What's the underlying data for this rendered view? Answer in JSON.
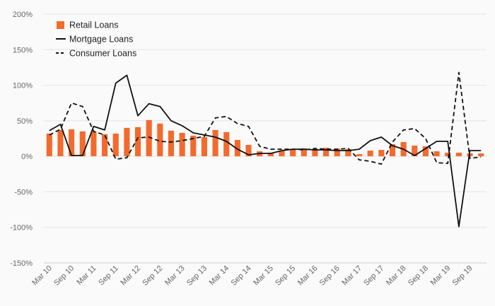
{
  "chart_data": {
    "type": "bar+line",
    "x": [
      "Mar 10",
      "Jun 10",
      "Sep 10",
      "Dec 10",
      "Mar 11",
      "Jun 11",
      "Sep 11",
      "Dec 11",
      "Mar 12",
      "Jun 12",
      "Sep 12",
      "Dec 12",
      "Mar 13",
      "Jun 13",
      "Sep 13",
      "Dec 13",
      "Mar 14",
      "Jun 14",
      "Sep 14",
      "Dec 14",
      "Mar 15",
      "Jun 15",
      "Sep 15",
      "Dec 15",
      "Mar 16",
      "Jun 16",
      "Sep 16",
      "Dec 16",
      "Mar 17",
      "Jun 17",
      "Sep 17",
      "Dec 17",
      "Mar 18",
      "Jun 18",
      "Sep 18",
      "Dec 18",
      "Mar 19",
      "Jun 19",
      "Sep 19",
      "Dec 19"
    ],
    "x_tick_labels": [
      "Mar 10",
      "Sep 10",
      "Mar 11",
      "Sep 11",
      "Mar 12",
      "Sep 12",
      "Mar 13",
      "Sep 13",
      "Mar 14",
      "Sep 14",
      "Mar 15",
      "Sep 15",
      "Mar 16",
      "Sep 16",
      "Mar 17",
      "Sep 17",
      "Mar 18",
      "Sep 18",
      "Mar 19",
      "Sep 19"
    ],
    "y_tick_labels": [
      "200%",
      "150%",
      "100%",
      "50%",
      "0%",
      "-50%",
      "-100%",
      "-150%"
    ],
    "ylim": [
      -150,
      200
    ],
    "grid": true,
    "legend_position": "top-left",
    "series": [
      {
        "name": "Retail Loans",
        "kind": "bar",
        "color": "#f26b2d",
        "values": [
          32,
          37,
          38,
          35,
          35,
          31,
          32,
          40,
          41,
          51,
          46,
          36,
          33,
          29,
          27,
          37,
          34,
          23,
          16,
          7,
          5,
          8,
          10,
          11,
          10,
          12,
          11,
          10,
          3,
          8,
          9,
          17,
          20,
          15,
          14,
          7,
          5,
          5,
          4,
          4
        ]
      },
      {
        "name": "Mortgage Loans",
        "kind": "line",
        "style": "solid",
        "color": "#111111",
        "values": [
          36,
          45,
          1,
          1,
          42,
          37,
          103,
          114,
          57,
          74,
          70,
          50,
          43,
          33,
          30,
          27,
          21,
          10,
          2,
          4,
          4,
          8,
          10,
          10,
          9,
          9,
          8,
          8,
          10,
          22,
          27,
          15,
          10,
          1,
          11,
          21,
          21,
          -99,
          8,
          8
        ]
      },
      {
        "name": "Consumer Loans",
        "kind": "line",
        "style": "dashed",
        "color": "#111111",
        "values": [
          30,
          38,
          75,
          70,
          35,
          30,
          -4,
          -2,
          26,
          27,
          21,
          20,
          22,
          25,
          28,
          54,
          56,
          46,
          42,
          14,
          10,
          10,
          10,
          9,
          11,
          10,
          10,
          11,
          -5,
          -7,
          -11,
          20,
          37,
          39,
          25,
          -9,
          -10,
          118,
          -3,
          -1
        ]
      }
    ]
  }
}
